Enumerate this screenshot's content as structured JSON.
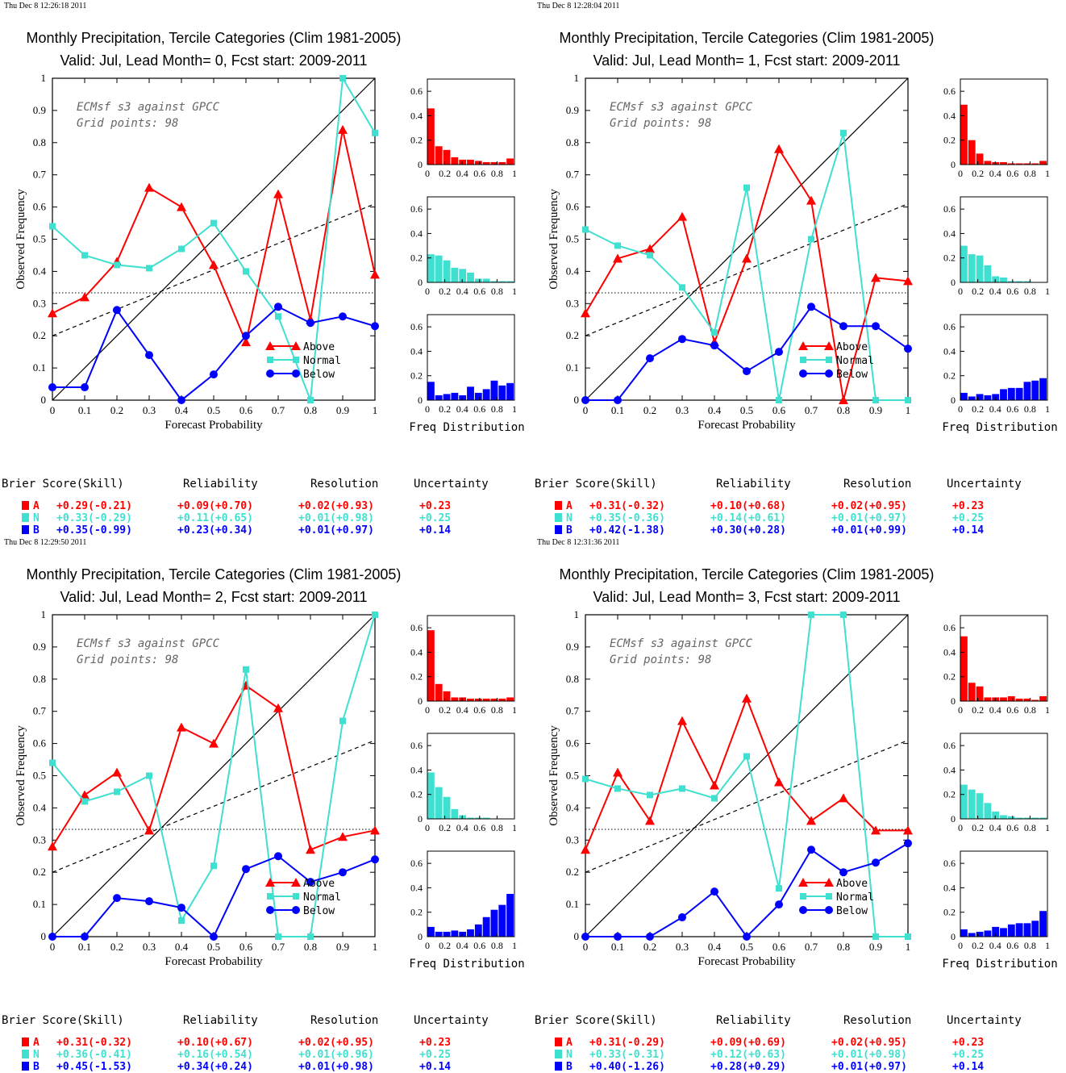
{
  "colors": {
    "Above": "#ff0000",
    "Normal": "#40e0d0",
    "Below": "#0000ff"
  },
  "score_headers": [
    "Brier Score(Skill)",
    "Reliability",
    "Resolution",
    "Uncertainty"
  ],
  "chart_data": [
    {
      "type": "line",
      "timestamp": "Thu Dec  8 12:26:18 2011",
      "title": "Monthly Precipitation, Tercile Categories (Clim 1981-2005)",
      "subtitle": "Valid: Jul, Lead Month= 0, Fcst start: 2009-2011",
      "xlabel": "Forecast Probability",
      "ylabel": "Observed Frequency",
      "annotation": [
        "ECMsf s3 against GPCC",
        "Grid points:    98"
      ],
      "xlim": [
        0,
        1
      ],
      "ylim": [
        0,
        1
      ],
      "x": [
        0,
        0.1,
        0.2,
        0.3,
        0.4,
        0.5,
        0.6,
        0.7,
        0.8,
        0.9,
        1
      ],
      "series": [
        {
          "name": "Above",
          "values": [
            0.27,
            0.32,
            0.43,
            0.66,
            0.6,
            0.42,
            0.18,
            0.64,
            0.25,
            0.84,
            0.39
          ]
        },
        {
          "name": "Normal",
          "values": [
            0.54,
            0.45,
            0.42,
            0.41,
            0.47,
            0.55,
            0.4,
            0.26,
            0.0,
            1.0,
            0.83
          ]
        },
        {
          "name": "Below",
          "values": [
            0.04,
            0.04,
            0.28,
            0.14,
            0.0,
            0.08,
            0.2,
            0.29,
            0.24,
            0.26,
            0.23
          ]
        }
      ],
      "hist_xlabel": "Freq Distribution",
      "hist": [
        [
          0.46,
          0.15,
          0.12,
          0.06,
          0.04,
          0.04,
          0.03,
          0.02,
          0.02,
          0.02,
          0.05
        ],
        [
          0.23,
          0.22,
          0.18,
          0.12,
          0.11,
          0.08,
          0.03,
          0.03,
          0.01,
          0.01,
          0.01
        ],
        [
          0.15,
          0.04,
          0.05,
          0.06,
          0.04,
          0.11,
          0.06,
          0.09,
          0.16,
          0.12,
          0.14
        ]
      ],
      "scores": [
        {
          "cat": "A",
          "brier": "+0.29(-0.21)",
          "reliability": "+0.09(+0.70)",
          "resolution": "+0.02(+0.93)",
          "uncertainty": "+0.23"
        },
        {
          "cat": "N",
          "brier": "+0.33(-0.29)",
          "reliability": "+0.11(+0.65)",
          "resolution": "+0.01(+0.98)",
          "uncertainty": "+0.25"
        },
        {
          "cat": "B",
          "brier": "+0.35(-0.99)",
          "reliability": "+0.23(+0.34)",
          "resolution": "+0.01(+0.97)",
          "uncertainty": "+0.14"
        }
      ]
    },
    {
      "type": "line",
      "timestamp": "Thu Dec  8 12:28:04 2011",
      "title": "Monthly Precipitation, Tercile Categories (Clim 1981-2005)",
      "subtitle": "Valid: Jul, Lead Month= 1, Fcst start: 2009-2011",
      "xlabel": "Forecast Probability",
      "ylabel": "Observed Frequency",
      "annotation": [
        "ECMsf s3 against GPCC",
        "Grid points:    98"
      ],
      "xlim": [
        0,
        1
      ],
      "ylim": [
        0,
        1
      ],
      "x": [
        0,
        0.1,
        0.2,
        0.3,
        0.4,
        0.5,
        0.6,
        0.7,
        0.8,
        0.9,
        1
      ],
      "series": [
        {
          "name": "Above",
          "values": [
            0.27,
            0.44,
            0.47,
            0.57,
            0.18,
            0.44,
            0.78,
            0.62,
            0.0,
            0.38,
            0.37
          ]
        },
        {
          "name": "Normal",
          "values": [
            0.53,
            0.48,
            0.45,
            0.35,
            0.21,
            0.66,
            0.0,
            0.5,
            0.83,
            0.0,
            0.0
          ]
        },
        {
          "name": "Below",
          "values": [
            0.0,
            0.0,
            0.13,
            0.19,
            0.17,
            0.09,
            0.15,
            0.29,
            0.23,
            0.23,
            0.16
          ]
        }
      ],
      "hist_xlabel": "Freq Distribution",
      "hist": [
        [
          0.49,
          0.2,
          0.09,
          0.03,
          0.02,
          0.02,
          0.01,
          0.01,
          0.01,
          0.01,
          0.03
        ],
        [
          0.3,
          0.23,
          0.22,
          0.14,
          0.05,
          0.04,
          0.01,
          0.01,
          0.01,
          0.0,
          0.0
        ],
        [
          0.06,
          0.03,
          0.05,
          0.04,
          0.05,
          0.09,
          0.1,
          0.1,
          0.15,
          0.16,
          0.18
        ]
      ],
      "scores": [
        {
          "cat": "A",
          "brier": "+0.31(-0.32)",
          "reliability": "+0.10(+0.68)",
          "resolution": "+0.02(+0.95)",
          "uncertainty": "+0.23"
        },
        {
          "cat": "N",
          "brier": "+0.35(-0.36)",
          "reliability": "+0.14(+0.61)",
          "resolution": "+0.01(+0.97)",
          "uncertainty": "+0.25"
        },
        {
          "cat": "B",
          "brier": "+0.42(-1.38)",
          "reliability": "+0.30(+0.28)",
          "resolution": "+0.01(+0.99)",
          "uncertainty": "+0.14"
        }
      ]
    },
    {
      "type": "line",
      "timestamp": "Thu Dec  8 12:29:50 2011",
      "title": "Monthly Precipitation, Tercile Categories (Clim 1981-2005)",
      "subtitle": "Valid: Jul, Lead Month= 2, Fcst start: 2009-2011",
      "xlabel": "Forecast Probability",
      "ylabel": "Observed Frequency",
      "annotation": [
        "ECMsf s3 against GPCC",
        "Grid points:    98"
      ],
      "xlim": [
        0,
        1
      ],
      "ylim": [
        0,
        1
      ],
      "x": [
        0,
        0.1,
        0.2,
        0.3,
        0.4,
        0.5,
        0.6,
        0.7,
        0.8,
        0.9,
        1
      ],
      "series": [
        {
          "name": "Above",
          "values": [
            0.28,
            0.44,
            0.51,
            0.33,
            0.65,
            0.6,
            0.78,
            0.71,
            0.27,
            0.31,
            0.33
          ]
        },
        {
          "name": "Normal",
          "values": [
            0.54,
            0.42,
            0.45,
            0.5,
            0.05,
            0.22,
            0.83,
            0.0,
            0.0,
            0.67,
            1.0
          ]
        },
        {
          "name": "Below",
          "values": [
            0.0,
            0.0,
            0.12,
            0.11,
            0.09,
            0.0,
            0.21,
            0.25,
            0.17,
            0.2,
            0.24
          ]
        }
      ],
      "hist_xlabel": "Freq Distribution",
      "hist": [
        [
          0.58,
          0.14,
          0.08,
          0.03,
          0.03,
          0.02,
          0.02,
          0.02,
          0.02,
          0.02,
          0.03
        ],
        [
          0.38,
          0.26,
          0.18,
          0.08,
          0.03,
          0.01,
          0.01,
          0.01,
          0.0,
          0.0,
          0.0
        ],
        [
          0.08,
          0.04,
          0.04,
          0.05,
          0.04,
          0.06,
          0.1,
          0.16,
          0.22,
          0.26,
          0.35
        ]
      ],
      "scores": [
        {
          "cat": "A",
          "brier": "+0.31(-0.32)",
          "reliability": "+0.10(+0.67)",
          "resolution": "+0.02(+0.95)",
          "uncertainty": "+0.23"
        },
        {
          "cat": "N",
          "brier": "+0.36(-0.41)",
          "reliability": "+0.16(+0.54)",
          "resolution": "+0.01(+0.96)",
          "uncertainty": "+0.25"
        },
        {
          "cat": "B",
          "brier": "+0.45(-1.53)",
          "reliability": "+0.34(+0.24)",
          "resolution": "+0.01(+0.98)",
          "uncertainty": "+0.14"
        }
      ]
    },
    {
      "type": "line",
      "timestamp": "Thu Dec  8 12:31:36 2011",
      "title": "Monthly Precipitation, Tercile Categories (Clim 1981-2005)",
      "subtitle": "Valid: Jul, Lead Month= 3, Fcst start: 2009-2011",
      "xlabel": "Forecast Probability",
      "ylabel": "Observed Frequency",
      "annotation": [
        "ECMsf s3 against GPCC",
        "Grid points:    98"
      ],
      "xlim": [
        0,
        1
      ],
      "ylim": [
        0,
        1
      ],
      "x": [
        0,
        0.1,
        0.2,
        0.3,
        0.4,
        0.5,
        0.6,
        0.7,
        0.8,
        0.9,
        1
      ],
      "series": [
        {
          "name": "Above",
          "values": [
            0.27,
            0.51,
            0.36,
            0.67,
            0.47,
            0.74,
            0.48,
            0.36,
            0.43,
            0.33,
            0.33
          ]
        },
        {
          "name": "Normal",
          "values": [
            0.49,
            0.46,
            0.44,
            0.46,
            0.43,
            0.56,
            0.15,
            1.0,
            1.0,
            0.0,
            0.0
          ]
        },
        {
          "name": "Below",
          "values": [
            0.0,
            0.0,
            0.0,
            0.06,
            0.14,
            0.0,
            0.1,
            0.27,
            0.2,
            0.23,
            0.29
          ]
        }
      ],
      "hist_xlabel": "Freq Distribution",
      "hist": [
        [
          0.53,
          0.15,
          0.12,
          0.03,
          0.03,
          0.03,
          0.04,
          0.02,
          0.02,
          0.01,
          0.04
        ],
        [
          0.28,
          0.24,
          0.21,
          0.13,
          0.06,
          0.03,
          0.02,
          0.01,
          0.01,
          0.01,
          0.01
        ],
        [
          0.06,
          0.03,
          0.04,
          0.05,
          0.08,
          0.07,
          0.1,
          0.11,
          0.11,
          0.13,
          0.21
        ]
      ],
      "scores": [
        {
          "cat": "A",
          "brier": "+0.31(-0.29)",
          "reliability": "+0.09(+0.69)",
          "resolution": "+0.02(+0.95)",
          "uncertainty": "+0.23"
        },
        {
          "cat": "N",
          "brier": "+0.33(-0.31)",
          "reliability": "+0.12(+0.63)",
          "resolution": "+0.01(+0.98)",
          "uncertainty": "+0.25"
        },
        {
          "cat": "B",
          "brier": "+0.40(-1.26)",
          "reliability": "+0.28(+0.29)",
          "resolution": "+0.01(+0.97)",
          "uncertainty": "+0.14"
        }
      ]
    }
  ]
}
